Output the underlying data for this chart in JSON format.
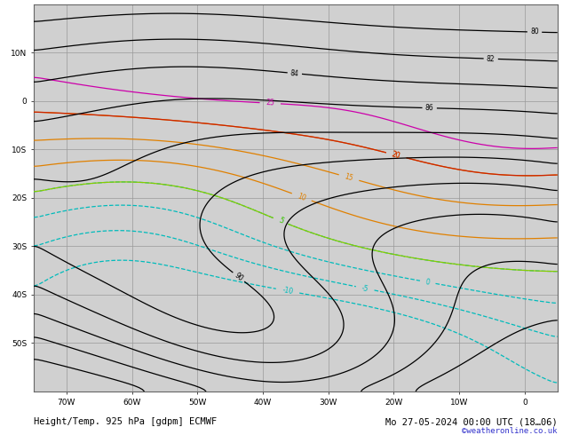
{
  "title_left": "Height/Temp. 925 hPa [gdpm] ECMWF",
  "title_right": "Mo 27-05-2024 00:00 UTC (18…06)",
  "copyright": "©weatheronline.co.uk",
  "background_ocean": "#d0d0d0",
  "background_land": "#c8e6a0",
  "background_land_alt": "#b8dc90",
  "grid_color": "#999999",
  "fig_width": 6.34,
  "fig_height": 4.9,
  "dpi": 100,
  "lon_min": -75,
  "lon_max": 5,
  "lat_min": -60,
  "lat_max": 20,
  "x_ticks": [
    -70,
    -60,
    -50,
    -40,
    -30,
    -20,
    -10,
    0
  ],
  "x_labels": [
    "70W",
    "60W",
    "50W",
    "40W",
    "30W",
    "20W",
    "10W",
    "0"
  ],
  "y_ticks": [
    -50,
    -40,
    -30,
    -20,
    -10,
    0,
    10
  ],
  "y_labels": [
    "50S",
    "40S",
    "30S",
    "20S",
    "10S",
    "0",
    "10N"
  ],
  "label_fontsize": 6.5,
  "title_fontsize": 7.5,
  "contour_black": "#000000",
  "contour_orange": "#e08000",
  "contour_red": "#cc2200",
  "contour_magenta": "#cc00aa",
  "contour_cyan": "#00bbbb",
  "contour_green": "#88cc00",
  "contour_blue": "#0000cc"
}
